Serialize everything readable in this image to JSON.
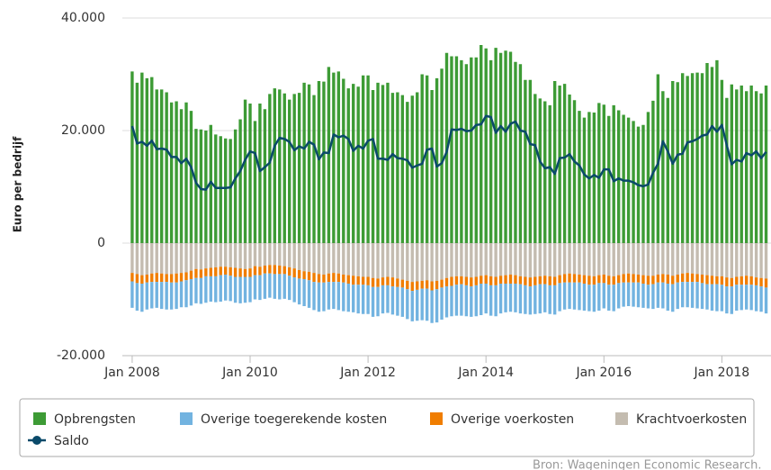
{
  "chart_data": {
    "type": "bar",
    "stacked": true,
    "y_label": "Euro per bedrijf",
    "source": "Bron: Wageningen Economic Research.",
    "legend": "bottom",
    "grid": true,
    "ylim": [
      -20000,
      40000
    ],
    "yticks": [
      {
        "value": -20000,
        "label": "-20.000"
      },
      0,
      {
        "value": 20000,
        "label": "20.000"
      },
      {
        "value": 40000,
        "label": "40.000"
      }
    ],
    "xlim": [
      "2007-11",
      "2018-11"
    ],
    "xticks": [
      {
        "value": "2008-01",
        "label": "Jan 2008"
      },
      {
        "value": "2010-01",
        "label": "Jan 2010"
      },
      {
        "value": "2012-01",
        "label": "Jan 2012"
      },
      {
        "value": "2014-01",
        "label": "Jan 2014"
      },
      {
        "value": "2016-01",
        "label": "Jan 2016"
      },
      {
        "value": "2018-01",
        "label": "Jan 2018"
      }
    ],
    "x": [
      "2008-01",
      "2008-02",
      "2008-03",
      "2008-04",
      "2008-05",
      "2008-06",
      "2008-07",
      "2008-08",
      "2008-09",
      "2008-10",
      "2008-11",
      "2008-12",
      "2009-01",
      "2009-02",
      "2009-03",
      "2009-04",
      "2009-05",
      "2009-06",
      "2009-07",
      "2009-08",
      "2009-09",
      "2009-10",
      "2009-11",
      "2009-12",
      "2010-01",
      "2010-02",
      "2010-03",
      "2010-04",
      "2010-05",
      "2010-06",
      "2010-07",
      "2010-08",
      "2010-09",
      "2010-10",
      "2010-11",
      "2010-12",
      "2011-01",
      "2011-02",
      "2011-03",
      "2011-04",
      "2011-05",
      "2011-06",
      "2011-07",
      "2011-08",
      "2011-09",
      "2011-10",
      "2011-11",
      "2011-12",
      "2012-01",
      "2012-02",
      "2012-03",
      "2012-04",
      "2012-05",
      "2012-06",
      "2012-07",
      "2012-08",
      "2012-09",
      "2012-10",
      "2012-11",
      "2012-12",
      "2013-01",
      "2013-02",
      "2013-03",
      "2013-04",
      "2013-05",
      "2013-06",
      "2013-07",
      "2013-08",
      "2013-09",
      "2013-10",
      "2013-11",
      "2013-12",
      "2014-01",
      "2014-02",
      "2014-03",
      "2014-04",
      "2014-05",
      "2014-06",
      "2014-07",
      "2014-08",
      "2014-09",
      "2014-10",
      "2014-11",
      "2014-12",
      "2015-01",
      "2015-02",
      "2015-03",
      "2015-04",
      "2015-05",
      "2015-06",
      "2015-07",
      "2015-08",
      "2015-09",
      "2015-10",
      "2015-11",
      "2015-12",
      "2016-01",
      "2016-02",
      "2016-03",
      "2016-04",
      "2016-05",
      "2016-06",
      "2016-07",
      "2016-08",
      "2016-09",
      "2016-10",
      "2016-11",
      "2016-12",
      "2017-01",
      "2017-02",
      "2017-03",
      "2017-04",
      "2017-05",
      "2017-06",
      "2017-07",
      "2017-08",
      "2017-09",
      "2017-10",
      "2017-11",
      "2017-12",
      "2018-01",
      "2018-02",
      "2018-03",
      "2018-04",
      "2018-05",
      "2018-06",
      "2018-07",
      "2018-08",
      "2018-09",
      "2018-10"
    ],
    "series": [
      {
        "name": "Opbrengsten",
        "color": "#3d9b35",
        "type": "bar",
        "values": [
          30500,
          28500,
          30300,
          29300,
          29500,
          27300,
          27300,
          26800,
          25000,
          25200,
          23800,
          25000,
          23500,
          20300,
          20200,
          20000,
          21000,
          19300,
          19000,
          18600,
          18500,
          20200,
          22000,
          25500,
          24800,
          21700,
          24800,
          23800,
          26500,
          27500,
          27300,
          26600,
          25500,
          26500,
          26700,
          28500,
          28200,
          26300,
          28800,
          28700,
          31300,
          30300,
          30500,
          29200,
          27500,
          28300,
          27800,
          29800,
          29800,
          27200,
          28500,
          28100,
          28500,
          26700,
          26800,
          26300,
          25100,
          26200,
          26800,
          30000,
          29800,
          27200,
          29300,
          31000,
          33800,
          33200,
          33200,
          32500,
          31800,
          33000,
          33000,
          35200,
          34600,
          32500,
          34700,
          33800,
          34200,
          34000,
          32200,
          31800,
          29000,
          29000,
          26500,
          25700,
          25200,
          24500,
          28800,
          28000,
          28300,
          26400,
          25400,
          23500,
          22300,
          23300,
          23200,
          24900,
          24600,
          22600,
          24500,
          23600,
          22800,
          22300,
          21700,
          20700,
          21000,
          23300,
          25300,
          30000,
          27000,
          25800,
          28800,
          28600,
          30200,
          29700,
          30200,
          30300,
          30200,
          32000,
          31300,
          32500,
          29000,
          25800,
          28200,
          27300,
          28000,
          27000,
          28000,
          27000,
          26600,
          28000
        ]
      },
      {
        "name": "Overige toegerekende kosten",
        "color": "#72b3e0",
        "type": "bar",
        "values": [
          -4700,
          -4900,
          -5000,
          -4800,
          -4700,
          -4600,
          -4800,
          -4900,
          -4800,
          -4700,
          -4600,
          -4800,
          -4700,
          -4500,
          -4600,
          -4700,
          -4500,
          -4600,
          -4700,
          -4600,
          -4500,
          -4600,
          -4700,
          -4600,
          -4500,
          -4300,
          -4400,
          -4500,
          -4300,
          -4400,
          -4500,
          -4400,
          -4300,
          -4400,
          -4600,
          -4800,
          -4900,
          -5000,
          -5200,
          -5100,
          -4900,
          -4800,
          -5000,
          -5100,
          -5000,
          -4900,
          -5100,
          -5200,
          -5100,
          -5300,
          -5200,
          -5000,
          -4900,
          -5000,
          -5100,
          -5200,
          -5300,
          -5400,
          -5500,
          -5600,
          -5700,
          -5800,
          -5900,
          -5700,
          -5500,
          -5400,
          -5500,
          -5600,
          -5500,
          -5400,
          -5500,
          -5600,
          -5300,
          -5400,
          -5500,
          -5300,
          -5100,
          -5000,
          -5100,
          -5200,
          -5100,
          -5000,
          -5100,
          -5200,
          -5000,
          -5100,
          -5200,
          -5000,
          -4800,
          -4700,
          -4800,
          -4900,
          -4800,
          -4700,
          -4800,
          -4900,
          -4500,
          -4600,
          -4700,
          -4500,
          -4300,
          -4200,
          -4300,
          -4400,
          -4300,
          -4200,
          -4400,
          -4500,
          -4600,
          -4800,
          -4900,
          -4700,
          -4500,
          -4500,
          -4600,
          -4700,
          -4600,
          -4500,
          -4700,
          -4800,
          -4700,
          -4800,
          -4900,
          -4600,
          -4500,
          -4400,
          -4500,
          -4600,
          -4500,
          -4600
        ]
      },
      {
        "name": "Overige voerkosten",
        "color": "#f07d00",
        "type": "bar",
        "values": [
          -1500,
          -1600,
          -1500,
          -1400,
          -1500,
          -1600,
          -1500,
          -1400,
          -1500,
          -1600,
          -1500,
          -1400,
          -1500,
          -1600,
          -1500,
          -1400,
          -1500,
          -1600,
          -1500,
          -1400,
          -1500,
          -1600,
          -1500,
          -1400,
          -1500,
          -1600,
          -1500,
          -1400,
          -1500,
          -1600,
          -1500,
          -1400,
          -1500,
          -1600,
          -1500,
          -1400,
          -1500,
          -1600,
          -1500,
          -1400,
          -1500,
          -1600,
          -1500,
          -1400,
          -1500,
          -1600,
          -1500,
          -1400,
          -1500,
          -1600,
          -1500,
          -1400,
          -1500,
          -1600,
          -1500,
          -1400,
          -1500,
          -1600,
          -1500,
          -1400,
          -1500,
          -1600,
          -1500,
          -1400,
          -1500,
          -1600,
          -1500,
          -1400,
          -1500,
          -1600,
          -1500,
          -1400,
          -1500,
          -1600,
          -1500,
          -1400,
          -1500,
          -1600,
          -1500,
          -1400,
          -1500,
          -1600,
          -1500,
          -1400,
          -1500,
          -1600,
          -1500,
          -1400,
          -1500,
          -1600,
          -1500,
          -1400,
          -1500,
          -1600,
          -1500,
          -1400,
          -1500,
          -1600,
          -1500,
          -1400,
          -1500,
          -1600,
          -1500,
          -1400,
          -1500,
          -1600,
          -1500,
          -1400,
          -1500,
          -1600,
          -1500,
          -1400,
          -1500,
          -1600,
          -1500,
          -1400,
          -1500,
          -1600,
          -1500,
          -1400,
          -1500,
          -1600,
          -1500,
          -1400,
          -1500,
          -1600,
          -1500,
          -1400,
          -1500,
          -1600
        ]
      },
      {
        "name": "Krachtvoerkosten",
        "color": "#c4bcb0",
        "type": "bar",
        "values": [
          -5300,
          -5500,
          -5700,
          -5600,
          -5400,
          -5300,
          -5400,
          -5500,
          -5500,
          -5400,
          -5300,
          -5200,
          -4900,
          -4600,
          -4700,
          -4500,
          -4400,
          -4300,
          -4200,
          -4200,
          -4300,
          -4400,
          -4500,
          -4600,
          -4500,
          -4100,
          -4200,
          -4000,
          -3900,
          -3900,
          -4000,
          -4100,
          -4300,
          -4500,
          -4800,
          -5000,
          -5100,
          -5300,
          -5500,
          -5600,
          -5400,
          -5300,
          -5400,
          -5600,
          -5700,
          -5800,
          -5900,
          -6000,
          -6000,
          -6200,
          -6300,
          -6100,
          -6000,
          -6100,
          -6300,
          -6500,
          -6700,
          -6900,
          -6800,
          -6700,
          -6600,
          -6800,
          -6700,
          -6500,
          -6200,
          -6000,
          -5900,
          -5900,
          -6000,
          -6100,
          -6000,
          -5800,
          -5700,
          -5900,
          -6000,
          -5800,
          -5700,
          -5600,
          -5700,
          -5900,
          -6000,
          -6100,
          -6000,
          -5900,
          -5800,
          -5900,
          -6000,
          -5700,
          -5500,
          -5400,
          -5500,
          -5600,
          -5700,
          -5800,
          -5900,
          -5700,
          -5600,
          -5800,
          -5900,
          -5700,
          -5500,
          -5400,
          -5500,
          -5600,
          -5700,
          -5800,
          -5800,
          -5600,
          -5500,
          -5600,
          -5800,
          -5600,
          -5400,
          -5300,
          -5400,
          -5500,
          -5600,
          -5700,
          -5800,
          -5900,
          -5900,
          -6100,
          -6200,
          -6000,
          -5900,
          -5800,
          -5900,
          -6100,
          -6200,
          -6300
        ]
      },
      {
        "name": "Saldo",
        "color": "#0a4a6a",
        "type": "line",
        "values": [
          20800,
          17700,
          18000,
          17300,
          18200,
          16700,
          16800,
          16600,
          15300,
          15300,
          14200,
          15000,
          13500,
          10700,
          9600,
          9500,
          10900,
          9800,
          9800,
          9800,
          9900,
          11500,
          12800,
          14800,
          16300,
          16000,
          12800,
          13500,
          14300,
          17300,
          18700,
          18500,
          18000,
          16500,
          17200,
          16800,
          18000,
          17500,
          14900,
          16100,
          16000,
          19300,
          18800,
          19100,
          18500,
          16400,
          17300,
          16800,
          18200,
          18500,
          15000,
          15000,
          14800,
          15800,
          15100,
          15000,
          14700,
          13400,
          13800,
          14100,
          16600,
          16800,
          13600,
          14200,
          16200,
          20200,
          20100,
          20300,
          19900,
          20000,
          21000,
          21100,
          22600,
          22400,
          19600,
          20800,
          19800,
          21200,
          21600,
          20000,
          19800,
          17600,
          17400,
          14500,
          13300,
          13500,
          12300,
          15100,
          15200,
          15800,
          14500,
          13800,
          12200,
          11500,
          12100,
          11600,
          13100,
          13100,
          11000,
          11500,
          11100,
          11100,
          10800,
          10300,
          10100,
          10400,
          12500,
          14100,
          18100,
          16300,
          14100,
          15700,
          15900,
          17900,
          18100,
          18500,
          19100,
          19300,
          20800,
          19800,
          21000,
          17400,
          14000,
          14800,
          14500,
          16000,
          15600,
          16300,
          15100,
          16200
        ]
      }
    ]
  }
}
